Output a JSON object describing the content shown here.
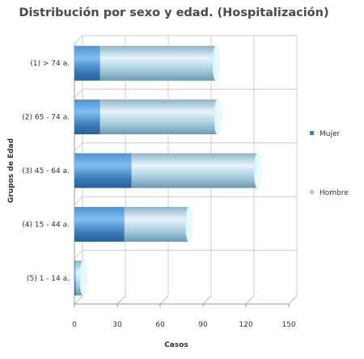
{
  "chart_data": {
    "type": "bar",
    "orientation": "horizontal",
    "stacked": true,
    "style": "3d-cylinder",
    "title": "Distribución por sexo y edad. (Hospitalización)",
    "xlabel": "Casos",
    "ylabel": "Grupos de Edad",
    "categories": [
      "(1) > 74 a.",
      "(2) 65 - 74 a.",
      "(3) 45 - 64 a.",
      "(4) 15 - 44 a.",
      "(5) 1 - 14 a."
    ],
    "series": [
      {
        "name": "Mujer",
        "values": [
          18,
          18,
          40,
          35,
          1
        ],
        "color": "#3d7fc0"
      },
      {
        "name": "Hombre",
        "values": [
          81,
          82,
          88,
          45,
          5
        ],
        "color": "#a6cfee"
      }
    ],
    "xlim": [
      0,
      150
    ],
    "xticks": [
      0,
      30,
      60,
      90,
      120,
      150
    ],
    "grid": true,
    "legend_position": "right"
  }
}
